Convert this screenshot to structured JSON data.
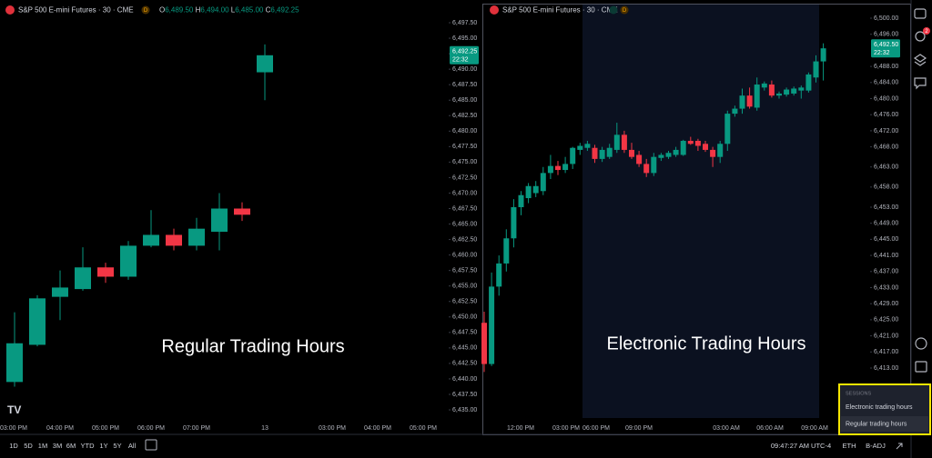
{
  "header": {
    "symbol": "S&P 500 E-mini Futures · 30 · CME",
    "badge": "D",
    "ohlc": [
      {
        "key": "O",
        "value": "6,489.50"
      },
      {
        "key": "H",
        "value": "6,494.00"
      },
      {
        "key": "L",
        "value": "6,485.00"
      },
      {
        "key": "C",
        "value": "6,492.25"
      }
    ]
  },
  "colors": {
    "up": "#089981",
    "down": "#f23645"
  },
  "left_chart": {
    "type": "candlestick",
    "overlay_label": "Regular Trading Hours",
    "ylim": [
      6432.95,
      6501.17
    ],
    "yticks": [
      {
        "value": 6497.5,
        "label": "6,497.50"
      },
      {
        "value": 6495,
        "label": "6,495.00"
      },
      {
        "value": 6492.5,
        "label": "6,492.50"
      },
      {
        "value": 6490,
        "label": "6,490.00"
      },
      {
        "value": 6487.5,
        "label": "6,487.50"
      },
      {
        "value": 6485,
        "label": "6,485.00"
      },
      {
        "value": 6482.5,
        "label": "6,482.50"
      },
      {
        "value": 6480,
        "label": "6,480.00"
      },
      {
        "value": 6477.5,
        "label": "6,477.50"
      },
      {
        "value": 6475,
        "label": "6,475.00"
      },
      {
        "value": 6472.5,
        "label": "6,472.50"
      },
      {
        "value": 6470,
        "label": "6,470.00"
      },
      {
        "value": 6467.5,
        "label": "6,467.50"
      },
      {
        "value": 6465,
        "label": "6,465.00"
      },
      {
        "value": 6462.5,
        "label": "6,462.50"
      },
      {
        "value": 6460,
        "label": "6,460.00"
      },
      {
        "value": 6457.5,
        "label": "6,457.50"
      },
      {
        "value": 6455,
        "label": "6,455.00"
      },
      {
        "value": 6452.5,
        "label": "6,452.50"
      },
      {
        "value": 6450,
        "label": "6,450.00"
      },
      {
        "value": 6447.5,
        "label": "6,447.50"
      },
      {
        "value": 6445,
        "label": "6,445.00"
      },
      {
        "value": 6442.5,
        "label": "6,442.50"
      },
      {
        "value": 6440,
        "label": "6,440.00"
      },
      {
        "value": 6437.5,
        "label": "6,437.50"
      },
      {
        "value": 6435,
        "label": "6,435.00"
      }
    ],
    "x_labels": [
      "03:00 PM",
      "04:00 PM",
      "05:00 PM",
      "06:00 PM",
      "07:00 PM",
      "13",
      "03:00 PM",
      "04:00 PM",
      "05:00 PM"
    ],
    "price_label": {
      "value": 6492.25,
      "label": "6,492.25"
    },
    "countdown": "22:32",
    "open": [
      6439.5,
      6445.5,
      6453.25,
      6454.5,
      6458.0,
      6456.5,
      6461.5,
      6463.25,
      6461.5,
      6463.75,
      6467.5,
      6489.5
    ],
    "high": [
      6450.75,
      6453.5,
      6457.5,
      6461.25,
      6458.75,
      6462.25,
      6467.25,
      6464.25,
      6466.0,
      6470.0,
      6468.5,
      6494.0
    ],
    "low": [
      6438.75,
      6445.25,
      6449.5,
      6454.25,
      6455.5,
      6456.0,
      6461.25,
      6460.75,
      6460.75,
      6460.75,
      6465.5,
      6485.0
    ],
    "close": [
      6445.75,
      6453.0,
      6454.75,
      6458.0,
      6456.5,
      6461.5,
      6463.25,
      6461.5,
      6464.25,
      6467.5,
      6466.5,
      6492.25
    ]
  },
  "right_chart": {
    "type": "candlestick",
    "overlay_label": "Electronic Trading Hours",
    "ylim": [
      6399.44,
      6504.52
    ],
    "yticks": [
      {
        "value": 6500,
        "label": "6,500.00"
      },
      {
        "value": 6496,
        "label": "6,496.00"
      },
      {
        "value": 6488,
        "label": "6,488.00"
      },
      {
        "value": 6484,
        "label": "6,484.00"
      },
      {
        "value": 6480,
        "label": "6,480.00"
      },
      {
        "value": 6476,
        "label": "6,476.00"
      },
      {
        "value": 6472,
        "label": "6,472.00"
      },
      {
        "value": 6468,
        "label": "6,468.00"
      },
      {
        "value": 6463,
        "label": "6,463.00"
      },
      {
        "value": 6458,
        "label": "6,458.00"
      },
      {
        "value": 6453,
        "label": "6,453.00"
      },
      {
        "value": 6449,
        "label": "6,449.00"
      },
      {
        "value": 6445,
        "label": "6,445.00"
      },
      {
        "value": 6441,
        "label": "6,441.00"
      },
      {
        "value": 6437,
        "label": "6,437.00"
      },
      {
        "value": 6433,
        "label": "6,433.00"
      },
      {
        "value": 6429,
        "label": "6,429.00"
      },
      {
        "value": 6425,
        "label": "6,425.00"
      },
      {
        "value": 6421,
        "label": "6,421.00"
      },
      {
        "value": 6417,
        "label": "6,417.00"
      },
      {
        "value": 6413,
        "label": "6,413.00"
      }
    ],
    "x_labels": [
      "12:00 PM",
      "03:00 PM",
      "06:00 PM",
      "09:00 PM",
      "03:00 AM",
      "06:00 AM",
      "09:00 AM"
    ],
    "price_label": {
      "value": 6492.5,
      "label": "6,492.50"
    },
    "countdown": "22:32",
    "open": [
      6424.25,
      6414,
      6433.25,
      6439,
      6445.25,
      6453,
      6455.25,
      6456.5,
      6457,
      6461.5,
      6463.25,
      6462.25,
      6463.75,
      6467.25,
      6467.75,
      6467.75,
      6465,
      6465.5,
      6467.25,
      6471,
      6467.25,
      6466,
      6463.75,
      6461.5,
      6465.25,
      6465.5,
      6466,
      6466,
      6469.5,
      6469.5,
      6468.75,
      6467.25,
      6465.5,
      6468.75,
      6476.25,
      6477.5,
      6480.75,
      6477.75,
      6482.75,
      6483.5,
      6480.75,
      6481,
      6481.25,
      6482,
      6482,
      6485.25,
      6489.25
    ],
    "high": [
      6427,
      6436.75,
      6441,
      6447.5,
      6455,
      6457,
      6459,
      6459.5,
      6463,
      6466,
      6464.5,
      6465.5,
      6468,
      6469,
      6469.5,
      6468.5,
      6468,
      6468.75,
      6474,
      6472,
      6469,
      6467,
      6465,
      6466.5,
      6466.5,
      6467,
      6468,
      6469.75,
      6470.5,
      6470,
      6469.5,
      6468,
      6469.5,
      6477,
      6478.25,
      6482.5,
      6482.75,
      6485.25,
      6484.25,
      6484.5,
      6481.75,
      6482.75,
      6483,
      6483.25,
      6486.5,
      6490.75,
      6493.75
    ],
    "low": [
      6412,
      6413.5,
      6431,
      6437,
      6443,
      6451,
      6454,
      6455.5,
      6456,
      6460,
      6461,
      6461.5,
      6462.5,
      6466,
      6467,
      6464,
      6464.25,
      6465,
      6466.5,
      6466.5,
      6465,
      6463,
      6460.5,
      6460.75,
      6464.5,
      6465,
      6465.5,
      6465.75,
      6468.5,
      6467,
      6466.75,
      6463,
      6464,
      6467,
      6475.5,
      6476.25,
      6477.5,
      6477,
      6482,
      6480.25,
      6480,
      6480.5,
      6480.75,
      6480,
      6481.5,
      6484,
      6484.5
    ],
    "close": [
      6414,
      6433.25,
      6439,
      6445.25,
      6453,
      6456,
      6458.25,
      6458.25,
      6461.5,
      6463.25,
      6462.25,
      6463.75,
      6467.75,
      6468.25,
      6468.75,
      6465,
      6467.25,
      6467.75,
      6471,
      6467.25,
      6465.5,
      6463.75,
      6461.5,
      6465.5,
      6466,
      6466.5,
      6467.25,
      6469.5,
      6468.75,
      6468.25,
      6467.25,
      6465.5,
      6468.75,
      6476.25,
      6477.5,
      6480.75,
      6478,
      6483.5,
      6483.75,
      6480.75,
      6481.25,
      6482.25,
      6482.5,
      6482.75,
      6486,
      6489.25,
      6492.5
    ]
  },
  "toolbar": {
    "alert_badge": "2"
  },
  "bottom_bar": {
    "ranges": [
      "1D",
      "5D",
      "1M",
      "3M",
      "6M",
      "YTD",
      "1Y",
      "5Y",
      "All"
    ],
    "clock": "09:47:27 AM UTC-4",
    "session_button": "ETH",
    "adjust_button": "B-ADJ"
  },
  "sessions_menu": {
    "title": "SESSIONS",
    "options": [
      "Electronic trading hours",
      "Regular trading hours"
    ]
  }
}
